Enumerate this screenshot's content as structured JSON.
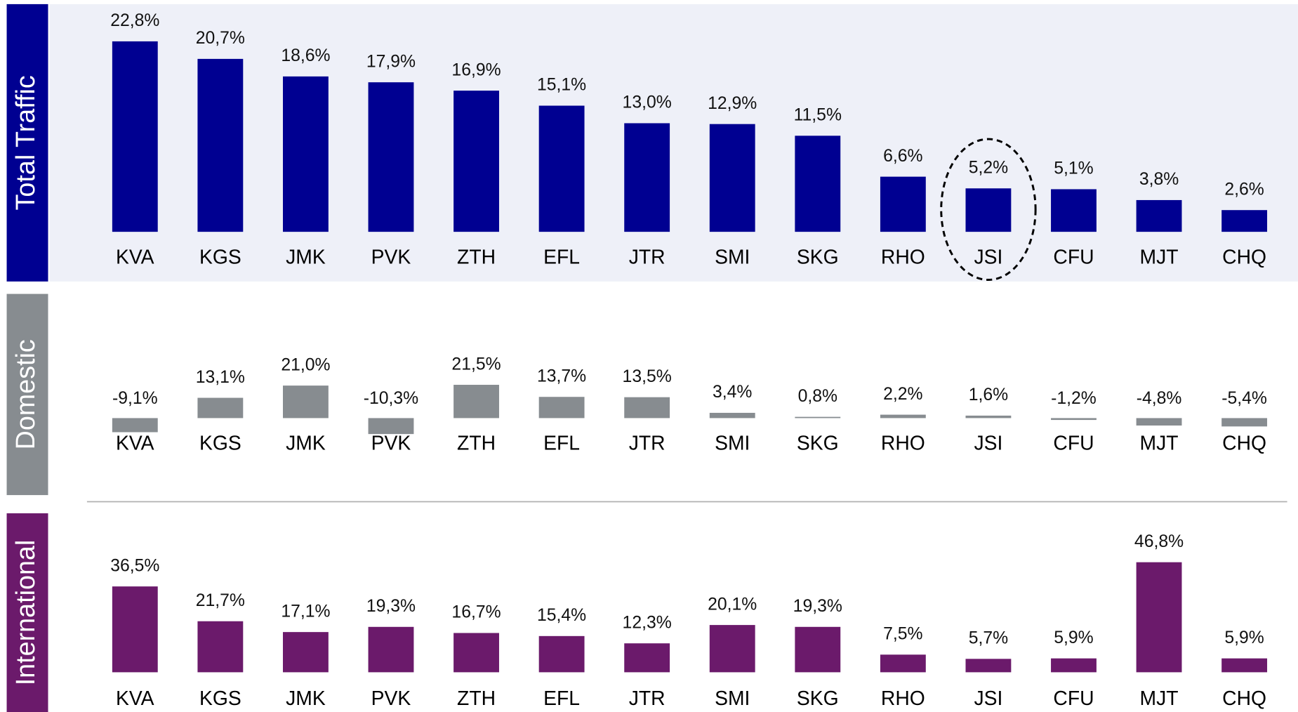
{
  "chart_data": [
    {
      "type": "bar",
      "title": "Total Traffic",
      "categories": [
        "KVA",
        "KGS",
        "JMK",
        "PVK",
        "ZTH",
        "EFL",
        "JTR",
        "SMI",
        "SKG",
        "RHO",
        "JSI",
        "CFU",
        "MJT",
        "CHQ"
      ],
      "values": [
        22.8,
        20.7,
        18.6,
        17.9,
        16.9,
        15.1,
        13.0,
        12.9,
        11.5,
        6.6,
        5.2,
        5.1,
        3.8,
        2.6
      ],
      "value_labels": [
        "22,8%",
        "20,7%",
        "18,6%",
        "17,9%",
        "16,9%",
        "15,1%",
        "13,0%",
        "12,9%",
        "11,5%",
        "6,6%",
        "5,2%",
        "5,1%",
        "3,8%",
        "2,6%"
      ],
      "color": "#000091",
      "negative_label_color": "#c00000"
    },
    {
      "type": "bar",
      "title": "Domestic",
      "categories": [
        "KVA",
        "KGS",
        "JMK",
        "PVK",
        "ZTH",
        "EFL",
        "JTR",
        "SMI",
        "SKG",
        "RHO",
        "JSI",
        "CFU",
        "MJT",
        "CHQ"
      ],
      "values": [
        -9.1,
        13.1,
        21.0,
        -10.3,
        21.5,
        13.7,
        13.5,
        3.4,
        0.8,
        2.2,
        1.6,
        -1.2,
        -4.8,
        -5.4
      ],
      "value_labels": [
        "-9,1%",
        "13,1%",
        "21,0%",
        "-10,3%",
        "21,5%",
        "13,7%",
        "13,5%",
        "3,4%",
        "0,8%",
        "2,2%",
        "1,6%",
        "-1,2%",
        "-4,8%",
        "-5,4%"
      ],
      "color": "#878c90",
      "negative_label_color": "#c00000"
    },
    {
      "type": "bar",
      "title": "International",
      "categories": [
        "KVA",
        "KGS",
        "JMK",
        "PVK",
        "ZTH",
        "EFL",
        "JTR",
        "SMI",
        "SKG",
        "RHO",
        "JSI",
        "CFU",
        "MJT",
        "CHQ"
      ],
      "values": [
        36.5,
        21.7,
        17.1,
        19.3,
        16.7,
        15.4,
        12.3,
        20.1,
        19.3,
        7.5,
        5.7,
        5.9,
        46.8,
        5.9
      ],
      "value_labels": [
        "36,5%",
        "21,7%",
        "17,1%",
        "19,3%",
        "16,7%",
        "15,4%",
        "12,3%",
        "20,1%",
        "19,3%",
        "7,5%",
        "5,7%",
        "5,9%",
        "46,8%",
        "5,9%"
      ],
      "color": "#6b1a6b",
      "negative_label_color": "#c00000"
    }
  ]
}
